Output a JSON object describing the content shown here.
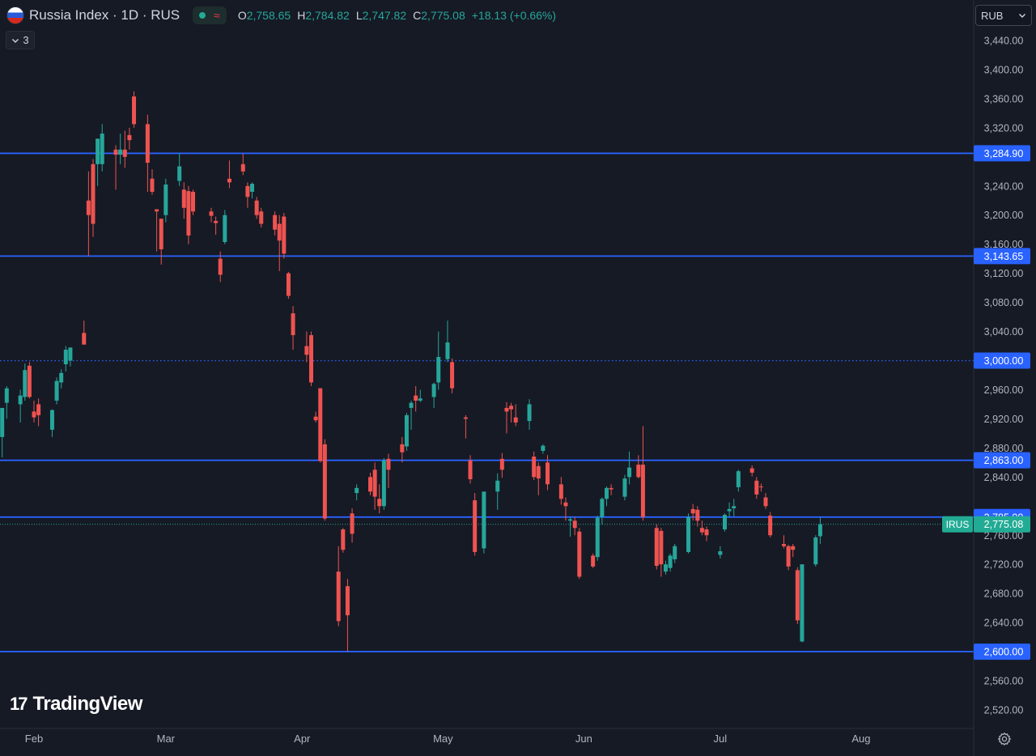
{
  "header": {
    "symbol_title": "Russia Index · 1D · RUS",
    "wave_icon": "≈",
    "ohlc": {
      "open_label": "O",
      "open": "2,758.65",
      "high_label": "H",
      "high": "2,784.82",
      "low_label": "L",
      "low": "2,747.82",
      "close_label": "C",
      "close": "2,775.08",
      "change": "+18.13 (+0.66%)"
    }
  },
  "indicators_toggle": {
    "icon": "chevron-down-icon",
    "count": "3"
  },
  "currency_selector": {
    "label": "RUB",
    "icon": "chevron-down-icon"
  },
  "watermark": {
    "mark": "17",
    "text": "TradingView"
  },
  "colors": {
    "background": "#161a25",
    "up": "#26a69a",
    "down": "#ef5350",
    "level_line": "#2962ff",
    "price_tag": "#22ab94"
  },
  "chart_data": {
    "type": "candlestick",
    "y_ticks": [
      "3,440.00",
      "3,400.00",
      "3,360.00",
      "3,320.00",
      "3,240.00",
      "3,200.00",
      "3,160.00",
      "3,120.00",
      "3,080.00",
      "3,040.00",
      "2,960.00",
      "2,920.00",
      "2,880.00",
      "2,840.00",
      "2,760.00",
      "2,720.00",
      "2,680.00",
      "2,640.00",
      "2,560.00",
      "2,520.00"
    ],
    "y_tick_values": [
      3440,
      3400,
      3360,
      3320,
      3240,
      3200,
      3160,
      3120,
      3080,
      3040,
      2960,
      2920,
      2880,
      2840,
      2760,
      2720,
      2680,
      2640,
      2560,
      2520
    ],
    "x_ticks": [
      "Feb",
      "Mar",
      "Apr",
      "May",
      "Jun",
      "Jul",
      "Aug"
    ],
    "x_tick_days": [
      0,
      29,
      59,
      90,
      121,
      151,
      182
    ],
    "ylim": [
      2505,
      3458
    ],
    "horizontal_levels": [
      {
        "value": 3284.9,
        "label": "3,284.90",
        "style": "solid"
      },
      {
        "value": 3143.65,
        "label": "3,143.65",
        "style": "solid"
      },
      {
        "value": 3000.0,
        "label": "3,000.00",
        "style": "dotted"
      },
      {
        "value": 2863.0,
        "label": "2,863.00",
        "style": "solid"
      },
      {
        "value": 2785.0,
        "label": "2,785.00",
        "style": "solid"
      },
      {
        "value": 2600.0,
        "label": "2,600.00",
        "style": "solid"
      }
    ],
    "last_price": {
      "symbol": "IRUS",
      "value": 2775.08,
      "label": "2,775.08"
    },
    "candles": [
      {
        "date": "2024-01-25",
        "open": 2895,
        "high": 2935,
        "low": 2867,
        "close": 2935
      },
      {
        "date": "2024-01-26",
        "open": 2942,
        "high": 2965,
        "low": 2920,
        "close": 2962
      },
      {
        "date": "2024-01-29",
        "open": 2940,
        "high": 2960,
        "low": 2915,
        "close": 2952
      },
      {
        "date": "2024-01-30",
        "open": 2950,
        "high": 2996,
        "low": 2945,
        "close": 2987
      },
      {
        "date": "2024-01-31",
        "open": 2993,
        "high": 2998,
        "low": 2948,
        "close": 2950
      },
      {
        "date": "2024-02-01",
        "open": 2930,
        "high": 2945,
        "low": 2915,
        "close": 2922
      },
      {
        "date": "2024-02-02",
        "open": 2940,
        "high": 2948,
        "low": 2910,
        "close": 2925
      },
      {
        "date": "2024-02-05",
        "open": 2905,
        "high": 2933,
        "low": 2895,
        "close": 2932
      },
      {
        "date": "2024-02-06",
        "open": 2945,
        "high": 2977,
        "low": 2940,
        "close": 2972
      },
      {
        "date": "2024-02-07",
        "open": 2970,
        "high": 2988,
        "low": 2962,
        "close": 2983
      },
      {
        "date": "2024-02-08",
        "open": 2995,
        "high": 3020,
        "low": 2985,
        "close": 3015
      },
      {
        "date": "2024-02-09",
        "open": 3000,
        "high": 3018,
        "low": 2992,
        "close": 3018
      },
      {
        "date": "2024-02-12",
        "open": 3038,
        "high": 3055,
        "low": 3028,
        "close": 3022
      },
      {
        "date": "2024-02-13",
        "open": 3220,
        "high": 3260,
        "low": 3144,
        "close": 3200
      },
      {
        "date": "2024-02-14",
        "open": 3270,
        "high": 3277,
        "low": 3170,
        "close": 3188
      },
      {
        "date": "2024-02-15",
        "open": 3270,
        "high": 3305,
        "low": 3240,
        "close": 3305
      },
      {
        "date": "2024-02-16",
        "open": 3270,
        "high": 3325,
        "low": 3260,
        "close": 3312
      },
      {
        "date": "2024-02-19",
        "open": 3290,
        "high": 3296,
        "low": 3235,
        "close": 3283
      },
      {
        "date": "2024-02-20",
        "open": 3283,
        "high": 3312,
        "low": 3270,
        "close": 3290
      },
      {
        "date": "2024-02-21",
        "open": 3290,
        "high": 3316,
        "low": 3265,
        "close": 3280
      },
      {
        "date": "2024-02-22",
        "open": 3310,
        "high": 3320,
        "low": 3290,
        "close": 3303
      },
      {
        "date": "2024-02-23",
        "open": 3363,
        "high": 3370,
        "low": 3320,
        "close": 3325
      },
      {
        "date": "2024-02-26",
        "open": 3325,
        "high": 3338,
        "low": 3232,
        "close": 3272
      },
      {
        "date": "2024-02-27",
        "open": 3250,
        "high": 3263,
        "low": 3228,
        "close": 3232
      },
      {
        "date": "2024-02-28",
        "open": 3208,
        "high": 3208,
        "low": 3150,
        "close": 3205
      },
      {
        "date": "2024-02-29",
        "open": 3195,
        "high": 3195,
        "low": 3132,
        "close": 3153
      },
      {
        "date": "2024-03-01",
        "open": 3200,
        "high": 3250,
        "low": 3190,
        "close": 3242
      },
      {
        "date": "2024-03-04",
        "open": 3247,
        "high": 3285,
        "low": 3240,
        "close": 3267
      },
      {
        "date": "2024-03-05",
        "open": 3235,
        "high": 3245,
        "low": 3195,
        "close": 3210
      },
      {
        "date": "2024-03-06",
        "open": 3233,
        "high": 3240,
        "low": 3160,
        "close": 3172
      },
      {
        "date": "2024-03-07",
        "open": 3232,
        "high": 3235,
        "low": 3200,
        "close": 3205
      },
      {
        "date": "2024-03-11",
        "open": 3205,
        "high": 3210,
        "low": 3190,
        "close": 3199
      },
      {
        "date": "2024-03-12",
        "open": 3192,
        "high": 3198,
        "low": 3173,
        "close": 3189
      },
      {
        "date": "2024-03-13",
        "open": 3140,
        "high": 3150,
        "low": 3108,
        "close": 3118
      },
      {
        "date": "2024-03-14",
        "open": 3163,
        "high": 3207,
        "low": 3160,
        "close": 3200
      },
      {
        "date": "2024-03-15",
        "open": 3250,
        "high": 3275,
        "low": 3237,
        "close": 3245
      },
      {
        "date": "2024-03-18",
        "open": 3270,
        "high": 3284,
        "low": 3255,
        "close": 3260
      },
      {
        "date": "2024-03-19",
        "open": 3240,
        "high": 3245,
        "low": 3210,
        "close": 3225
      },
      {
        "date": "2024-03-20",
        "open": 3232,
        "high": 3245,
        "low": 3223,
        "close": 3243
      },
      {
        "date": "2024-03-21",
        "open": 3220,
        "high": 3225,
        "low": 3195,
        "close": 3200
      },
      {
        "date": "2024-03-22",
        "open": 3205,
        "high": 3210,
        "low": 3183,
        "close": 3188
      },
      {
        "date": "2024-03-25",
        "open": 3200,
        "high": 3205,
        "low": 3172,
        "close": 3180
      },
      {
        "date": "2024-03-26",
        "open": 3188,
        "high": 3200,
        "low": 3123,
        "close": 3165
      },
      {
        "date": "2024-03-27",
        "open": 3198,
        "high": 3203,
        "low": 3140,
        "close": 3147
      },
      {
        "date": "2024-03-28",
        "open": 3120,
        "high": 3122,
        "low": 3085,
        "close": 3089
      },
      {
        "date": "2024-03-29",
        "open": 3065,
        "high": 3075,
        "low": 3015,
        "close": 3035
      },
      {
        "date": "2024-04-01",
        "open": 3020,
        "high": 3040,
        "low": 2998,
        "close": 3008
      },
      {
        "date": "2024-04-02",
        "open": 3035,
        "high": 3040,
        "low": 2965,
        "close": 2970
      },
      {
        "date": "2024-04-03",
        "open": 2923,
        "high": 2930,
        "low": 2915,
        "close": 2918
      },
      {
        "date": "2024-04-04",
        "open": 2962,
        "high": 2962,
        "low": 2860,
        "close": 2862
      },
      {
        "date": "2024-04-05",
        "open": 2885,
        "high": 2892,
        "low": 2780,
        "close": 2783
      },
      {
        "date": "2024-04-08",
        "open": 2710,
        "high": 2745,
        "low": 2635,
        "close": 2642
      },
      {
        "date": "2024-04-09",
        "open": 2768,
        "high": 2770,
        "low": 2736,
        "close": 2740
      },
      {
        "date": "2024-04-10",
        "open": 2690,
        "high": 2700,
        "low": 2600,
        "close": 2650
      },
      {
        "date": "2024-04-11",
        "open": 2790,
        "high": 2797,
        "low": 2750,
        "close": 2762
      },
      {
        "date": "2024-04-12",
        "open": 2818,
        "high": 2830,
        "low": 2808,
        "close": 2825
      },
      {
        "date": "2024-04-15",
        "open": 2840,
        "high": 2846,
        "low": 2815,
        "close": 2820
      },
      {
        "date": "2024-04-16",
        "open": 2850,
        "high": 2860,
        "low": 2795,
        "close": 2813
      },
      {
        "date": "2024-04-17",
        "open": 2810,
        "high": 2830,
        "low": 2790,
        "close": 2800
      },
      {
        "date": "2024-04-18",
        "open": 2800,
        "high": 2866,
        "low": 2795,
        "close": 2863
      },
      {
        "date": "2024-04-19",
        "open": 2865,
        "high": 2872,
        "low": 2825,
        "close": 2850
      },
      {
        "date": "2024-04-22",
        "open": 2885,
        "high": 2895,
        "low": 2860,
        "close": 2874
      },
      {
        "date": "2024-04-23",
        "open": 2882,
        "high": 2928,
        "low": 2876,
        "close": 2925
      },
      {
        "date": "2024-04-24",
        "open": 2935,
        "high": 2945,
        "low": 2905,
        "close": 2942
      },
      {
        "date": "2024-04-25",
        "open": 2952,
        "high": 2965,
        "low": 2930,
        "close": 2945
      },
      {
        "date": "2024-04-26",
        "open": 2945,
        "high": 2960,
        "low": 2943,
        "close": 2948
      },
      {
        "date": "2024-04-29",
        "open": 2950,
        "high": 2970,
        "low": 2935,
        "close": 2968
      },
      {
        "date": "2024-04-30",
        "open": 2970,
        "high": 3040,
        "low": 2960,
        "close": 3005
      },
      {
        "date": "2024-05-02",
        "open": 3002,
        "high": 3055,
        "low": 2998,
        "close": 3025
      },
      {
        "date": "2024-05-03",
        "open": 2998,
        "high": 3003,
        "low": 2955,
        "close": 2962
      },
      {
        "date": "2024-05-06",
        "open": 2922,
        "high": 2925,
        "low": 2893,
        "close": 2920
      },
      {
        "date": "2024-05-07",
        "open": 2863,
        "high": 2870,
        "low": 2831,
        "close": 2837
      },
      {
        "date": "2024-05-08",
        "open": 2808,
        "high": 2818,
        "low": 2732,
        "close": 2737
      },
      {
        "date": "2024-05-10",
        "open": 2742,
        "high": 2820,
        "low": 2735,
        "close": 2820
      },
      {
        "date": "2024-05-13",
        "open": 2820,
        "high": 2845,
        "low": 2795,
        "close": 2835
      },
      {
        "date": "2024-05-14",
        "open": 2865,
        "high": 2873,
        "low": 2839,
        "close": 2850
      },
      {
        "date": "2024-05-15",
        "open": 2935,
        "high": 2943,
        "low": 2900,
        "close": 2930
      },
      {
        "date": "2024-05-16",
        "open": 2938,
        "high": 2942,
        "low": 2915,
        "close": 2933
      },
      {
        "date": "2024-05-17",
        "open": 2922,
        "high": 2940,
        "low": 2910,
        "close": 2915
      },
      {
        "date": "2024-05-20",
        "open": 2917,
        "high": 2947,
        "low": 2905,
        "close": 2940
      },
      {
        "date": "2024-05-21",
        "open": 2868,
        "high": 2875,
        "low": 2836,
        "close": 2840
      },
      {
        "date": "2024-05-22",
        "open": 2855,
        "high": 2860,
        "low": 2815,
        "close": 2838
      },
      {
        "date": "2024-05-23",
        "open": 2876,
        "high": 2885,
        "low": 2872,
        "close": 2883
      },
      {
        "date": "2024-05-24",
        "open": 2860,
        "high": 2870,
        "low": 2822,
        "close": 2830
      },
      {
        "date": "2024-05-27",
        "open": 2830,
        "high": 2840,
        "low": 2802,
        "close": 2810
      },
      {
        "date": "2024-05-28",
        "open": 2805,
        "high": 2812,
        "low": 2780,
        "close": 2800
      },
      {
        "date": "2024-05-29",
        "open": 2780,
        "high": 2785,
        "low": 2758,
        "close": 2782
      },
      {
        "date": "2024-05-30",
        "open": 2780,
        "high": 2785,
        "low": 2760,
        "close": 2770
      },
      {
        "date": "2024-05-31",
        "open": 2765,
        "high": 2770,
        "low": 2700,
        "close": 2703
      },
      {
        "date": "2024-06-03",
        "open": 2732,
        "high": 2735,
        "low": 2715,
        "close": 2717
      },
      {
        "date": "2024-06-04",
        "open": 2730,
        "high": 2787,
        "low": 2725,
        "close": 2784
      },
      {
        "date": "2024-06-05",
        "open": 2785,
        "high": 2812,
        "low": 2775,
        "close": 2810
      },
      {
        "date": "2024-06-06",
        "open": 2810,
        "high": 2827,
        "low": 2800,
        "close": 2825
      },
      {
        "date": "2024-06-07",
        "open": 2825,
        "high": 2830,
        "low": 2815,
        "close": 2823
      },
      {
        "date": "2024-06-10",
        "open": 2813,
        "high": 2843,
        "low": 2808,
        "close": 2838
      },
      {
        "date": "2024-06-11",
        "open": 2840,
        "high": 2875,
        "low": 2830,
        "close": 2853
      },
      {
        "date": "2024-06-13",
        "open": 2857,
        "high": 2870,
        "low": 2838,
        "close": 2840
      },
      {
        "date": "2024-06-14",
        "open": 2857,
        "high": 2910,
        "low": 2780,
        "close": 2785
      },
      {
        "date": "2024-06-17",
        "open": 2770,
        "high": 2775,
        "low": 2713,
        "close": 2718
      },
      {
        "date": "2024-06-18",
        "open": 2766,
        "high": 2770,
        "low": 2703,
        "close": 2720
      },
      {
        "date": "2024-06-19",
        "open": 2710,
        "high": 2725,
        "low": 2706,
        "close": 2720
      },
      {
        "date": "2024-06-20",
        "open": 2715,
        "high": 2735,
        "low": 2710,
        "close": 2732
      },
      {
        "date": "2024-06-21",
        "open": 2727,
        "high": 2748,
        "low": 2722,
        "close": 2745
      },
      {
        "date": "2024-06-24",
        "open": 2737,
        "high": 2790,
        "low": 2735,
        "close": 2785
      },
      {
        "date": "2024-06-25",
        "open": 2796,
        "high": 2803,
        "low": 2780,
        "close": 2790
      },
      {
        "date": "2024-06-26",
        "open": 2795,
        "high": 2800,
        "low": 2772,
        "close": 2780
      },
      {
        "date": "2024-06-27",
        "open": 2770,
        "high": 2780,
        "low": 2760,
        "close": 2764
      },
      {
        "date": "2024-06-28",
        "open": 2768,
        "high": 2772,
        "low": 2752,
        "close": 2760
      },
      {
        "date": "2024-07-01",
        "open": 2733,
        "high": 2745,
        "low": 2728,
        "close": 2738
      },
      {
        "date": "2024-07-02",
        "open": 2768,
        "high": 2790,
        "low": 2765,
        "close": 2788
      },
      {
        "date": "2024-07-03",
        "open": 2793,
        "high": 2805,
        "low": 2785,
        "close": 2796
      },
      {
        "date": "2024-07-04",
        "open": 2797,
        "high": 2810,
        "low": 2786,
        "close": 2800
      },
      {
        "date": "2024-07-05",
        "open": 2826,
        "high": 2850,
        "low": 2820,
        "close": 2848
      },
      {
        "date": "2024-07-08",
        "open": 2852,
        "high": 2856,
        "low": 2841,
        "close": 2846
      },
      {
        "date": "2024-07-09",
        "open": 2835,
        "high": 2840,
        "low": 2810,
        "close": 2816
      },
      {
        "date": "2024-07-10",
        "open": 2827,
        "high": 2831,
        "low": 2820,
        "close": 2826
      },
      {
        "date": "2024-07-11",
        "open": 2812,
        "high": 2818,
        "low": 2796,
        "close": 2800
      },
      {
        "date": "2024-07-12",
        "open": 2787,
        "high": 2792,
        "low": 2757,
        "close": 2760
      },
      {
        "date": "2024-07-15",
        "open": 2748,
        "high": 2760,
        "low": 2742,
        "close": 2745
      },
      {
        "date": "2024-07-16",
        "open": 2745,
        "high": 2747,
        "low": 2712,
        "close": 2717
      },
      {
        "date": "2024-07-17",
        "open": 2745,
        "high": 2748,
        "low": 2730,
        "close": 2740
      },
      {
        "date": "2024-07-18",
        "open": 2712,
        "high": 2716,
        "low": 2638,
        "close": 2643
      },
      {
        "date": "2024-07-19",
        "open": 2614,
        "high": 2720,
        "low": 2613,
        "close": 2720
      },
      {
        "date": "2024-07-22",
        "open": 2720,
        "high": 2760,
        "low": 2717,
        "close": 2757
      },
      {
        "date": "2024-07-23",
        "open": 2758.65,
        "high": 2784.82,
        "low": 2747.82,
        "close": 2775.08
      }
    ]
  }
}
